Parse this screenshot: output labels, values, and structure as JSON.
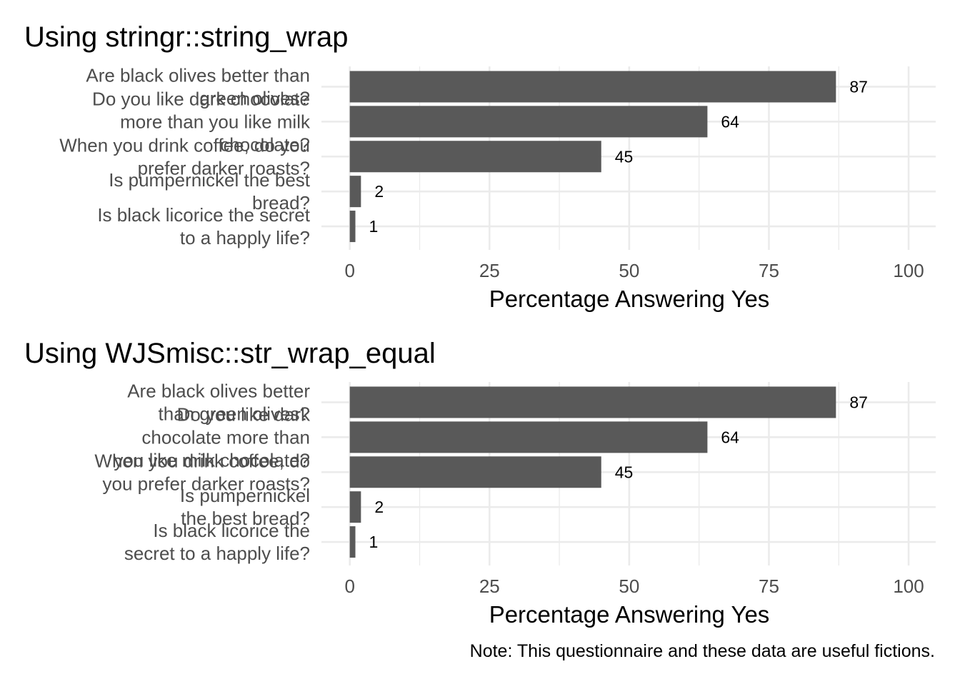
{
  "chart_data": [
    {
      "type": "bar",
      "orientation": "horizontal",
      "title": "Using stringr::string_wrap",
      "categories": [
        [
          "Are black olives better than",
          "green olives?"
        ],
        [
          "Do you like dark chocolate",
          "more than you like milk",
          "chocolate?"
        ],
        [
          "When you drink coffee, do you",
          "prefer darker roasts?"
        ],
        [
          "Is pumpernickel the best",
          "bread?"
        ],
        [
          "Is black licorice the secret",
          "to a happly life?"
        ]
      ],
      "values": [
        87,
        64,
        45,
        2,
        1
      ],
      "data_labels": [
        "87",
        "64",
        "45",
        "2",
        "1"
      ],
      "xlabel": "Percentage Answering Yes",
      "xlim": [
        0,
        100
      ],
      "xticks": [
        "0",
        "25",
        "50",
        "75",
        "100"
      ],
      "bar_color": "#595959",
      "grid": true,
      "legend": "none"
    },
    {
      "type": "bar",
      "orientation": "horizontal",
      "title": "Using WJSmisc::str_wrap_equal",
      "categories": [
        [
          "Are black olives better",
          "than green olives?"
        ],
        [
          "Do you like dark",
          "chocolate more than",
          "you like milk chocolate?"
        ],
        [
          "When you drink coffee, do",
          "you prefer darker roasts?"
        ],
        [
          "Is pumpernickel",
          "the best bread?"
        ],
        [
          "Is black licorice the",
          "secret to a happly life?"
        ]
      ],
      "values": [
        87,
        64,
        45,
        2,
        1
      ],
      "data_labels": [
        "87",
        "64",
        "45",
        "2",
        "1"
      ],
      "xlabel": "Percentage Answering Yes",
      "xlim": [
        0,
        100
      ],
      "xticks": [
        "0",
        "25",
        "50",
        "75",
        "100"
      ],
      "bar_color": "#595959",
      "grid": true,
      "legend": "none"
    }
  ],
  "caption": "Note: This questionnaire and these data are useful fictions.",
  "colors": {
    "bar": "#595959",
    "grid": "#ebebeb",
    "axis_text": "#4d4d4d",
    "text": "#000000"
  }
}
